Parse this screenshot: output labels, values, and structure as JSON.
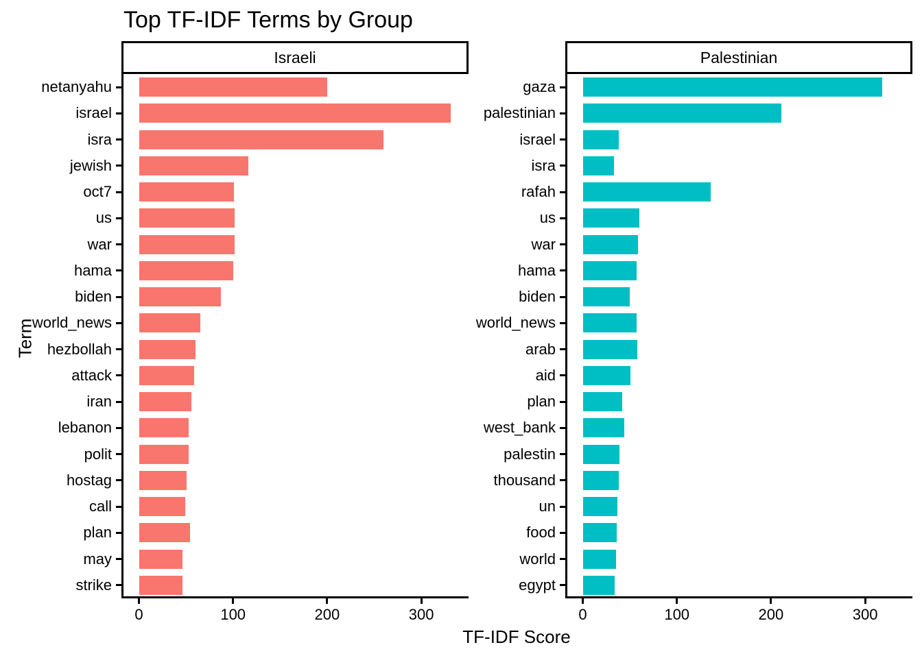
{
  "title": "Top TF-IDF Terms by Group",
  "x_axis_title": "TF-IDF Score",
  "y_axis_title": "Term",
  "colors": {
    "israeli_bar": "#F8766D",
    "palestinian_bar": "#00BFC4",
    "axis": "#000000",
    "background": "#FFFFFF"
  },
  "chart_data": {
    "type": "bar",
    "orientation": "horizontal",
    "title": "Top TF-IDF Terms by Group",
    "xlabel": "TF-IDF Score",
    "ylabel": "Term",
    "xlim": [
      0,
      346
    ],
    "x_ticks": [
      0,
      100,
      200,
      300
    ],
    "grid": false,
    "legend_position": "none",
    "facets": [
      {
        "label": "Israeli",
        "color": "#F8766D",
        "terms": [
          "netanyahu",
          "israel",
          "isra",
          "jewish",
          "oct7",
          "us",
          "war",
          "hama",
          "biden",
          "world_news",
          "hezbollah",
          "attack",
          "iran",
          "lebanon",
          "polit",
          "hostag",
          "call",
          "plan",
          "may",
          "strike"
        ],
        "values": [
          200,
          331,
          260,
          116,
          101,
          102,
          102,
          100,
          87,
          65,
          60,
          59,
          56,
          53,
          53,
          51,
          49,
          54,
          46,
          46
        ]
      },
      {
        "label": "Palestinian",
        "color": "#00BFC4",
        "terms": [
          "gaza",
          "palestinian",
          "israel",
          "isra",
          "rafah",
          "us",
          "war",
          "hama",
          "biden",
          "world_news",
          "arab",
          "aid",
          "plan",
          "west_bank",
          "palestin",
          "thousand",
          "un",
          "food",
          "world",
          "egypt"
        ],
        "values": [
          318,
          211,
          38,
          33,
          136,
          60,
          59,
          57,
          50,
          57,
          58,
          51,
          42,
          44,
          39,
          38,
          37,
          36,
          35,
          34
        ]
      }
    ]
  }
}
